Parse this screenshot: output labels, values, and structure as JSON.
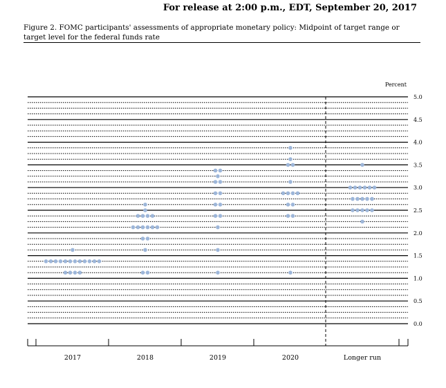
{
  "header": {
    "release_line": "For release at 2:00 p.m., EDT, September 20, 2017"
  },
  "figure": {
    "caption": "Figure 2. FOMC participants' assessments of appropriate monetary policy: Midpoint of target range or target level for the federal funds rate"
  },
  "chart_data": {
    "type": "scatter",
    "unit_label": "Percent",
    "categories": [
      "2017",
      "2018",
      "2019",
      "2020",
      "Longer run"
    ],
    "ylim": [
      0,
      5
    ],
    "y_ticks": [
      "0.0",
      "0.5",
      "1.0",
      "1.5",
      "2.0",
      "2.5",
      "3.0",
      "3.5",
      "4.0",
      "4.5",
      "5.0"
    ],
    "grid": true,
    "dot_color": "#9db6d9",
    "points": [
      {
        "category": "2017",
        "values": [
          {
            "y": 1.625,
            "count": 1
          },
          {
            "y": 1.375,
            "count": 12
          },
          {
            "y": 1.125,
            "count": 4
          }
        ]
      },
      {
        "category": "2018",
        "values": [
          {
            "y": 2.625,
            "count": 1
          },
          {
            "y": 2.5,
            "count": 1
          },
          {
            "y": 2.375,
            "count": 4
          },
          {
            "y": 2.125,
            "count": 6
          },
          {
            "y": 1.875,
            "count": 2
          },
          {
            "y": 1.625,
            "count": 1
          },
          {
            "y": 1.125,
            "count": 2
          }
        ]
      },
      {
        "category": "2019",
        "values": [
          {
            "y": 3.375,
            "count": 2
          },
          {
            "y": 3.25,
            "count": 1
          },
          {
            "y": 3.125,
            "count": 2
          },
          {
            "y": 2.875,
            "count": 2
          },
          {
            "y": 2.625,
            "count": 2
          },
          {
            "y": 2.375,
            "count": 2
          },
          {
            "y": 2.125,
            "count": 1
          },
          {
            "y": 1.625,
            "count": 1
          },
          {
            "y": 1.125,
            "count": 1
          }
        ]
      },
      {
        "category": "2020",
        "values": [
          {
            "y": 3.875,
            "count": 1
          },
          {
            "y": 3.625,
            "count": 1
          },
          {
            "y": 3.5,
            "count": 2
          },
          {
            "y": 3.125,
            "count": 1
          },
          {
            "y": 2.875,
            "count": 4
          },
          {
            "y": 2.625,
            "count": 2
          },
          {
            "y": 2.375,
            "count": 2
          },
          {
            "y": 1.125,
            "count": 1
          }
        ]
      },
      {
        "category": "Longer run",
        "values": [
          {
            "y": 3.5,
            "count": 1
          },
          {
            "y": 3.0,
            "count": 6
          },
          {
            "y": 2.75,
            "count": 5
          },
          {
            "y": 2.5,
            "count": 5
          },
          {
            "y": 2.25,
            "count": 1
          }
        ]
      }
    ]
  }
}
